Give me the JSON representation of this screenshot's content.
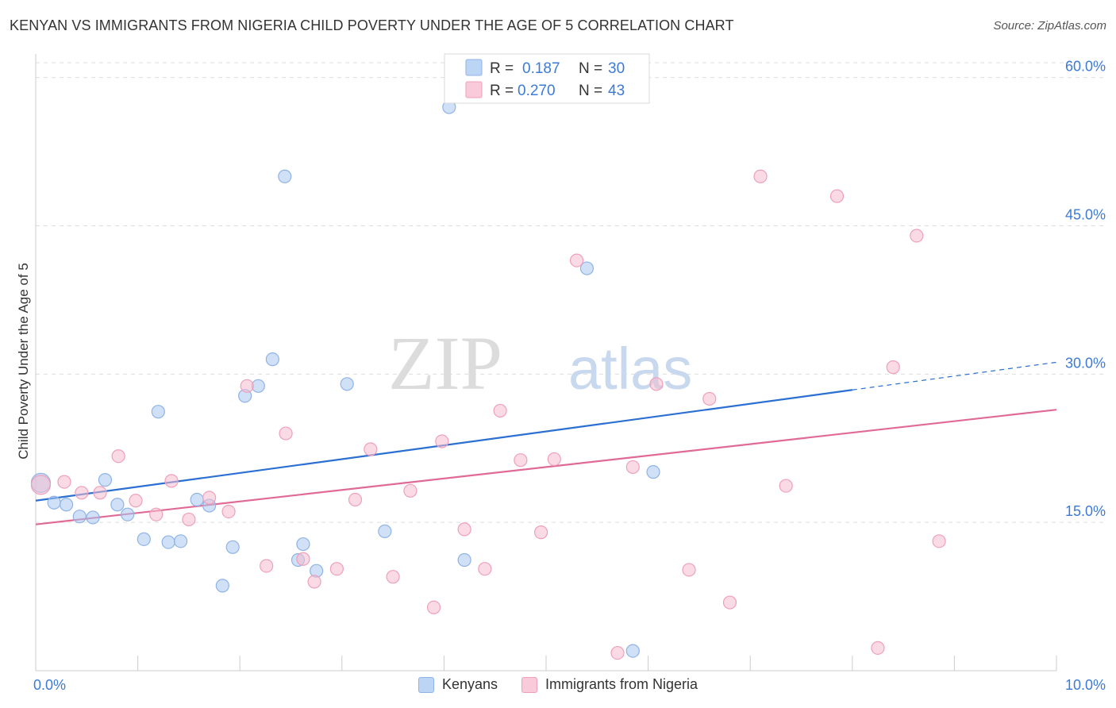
{
  "chart_data": {
    "type": "scatter",
    "title": "KENYAN VS IMMIGRANTS FROM NIGERIA CHILD POVERTY UNDER THE AGE OF 5 CORRELATION CHART",
    "source": "Source: ZipAtlas.com",
    "ylabel": "Child Poverty Under the Age of 5",
    "xlim": [
      0,
      10
    ],
    "ylim": [
      0,
      61.5
    ],
    "x_tick_labels": [
      "0.0%",
      "10.0%"
    ],
    "y_ticks": [
      15,
      30,
      45,
      60
    ],
    "y_tick_labels": [
      "15.0%",
      "30.0%",
      "45.0%",
      "60.0%"
    ],
    "watermark": {
      "zip": "ZIP",
      "atlas": "atlas"
    },
    "legend": [
      {
        "r_label": "R =",
        "r_value": "0.187",
        "n_label": "N =",
        "n_value": "30"
      },
      {
        "r_label": "R =",
        "r_value": "0.270",
        "n_label": "N =",
        "n_value": "43"
      }
    ],
    "series": [
      {
        "name": "Kenyans",
        "color": "#a9c8f0",
        "line_color": "#2a6fd1",
        "trend": {
          "x0": 0,
          "y0": 17.2,
          "x1": 8.0,
          "y1": 28.4,
          "dash_x1": 10.0,
          "dash_y1": 31.2
        },
        "points": [
          [
            0.05,
            19.0
          ],
          [
            0.18,
            17.0
          ],
          [
            0.3,
            16.8
          ],
          [
            0.43,
            15.6
          ],
          [
            0.56,
            15.5
          ],
          [
            0.68,
            19.3
          ],
          [
            0.8,
            16.8
          ],
          [
            0.9,
            15.8
          ],
          [
            1.06,
            13.3
          ],
          [
            1.2,
            26.2
          ],
          [
            1.3,
            13.0
          ],
          [
            1.42,
            13.1
          ],
          [
            1.58,
            17.3
          ],
          [
            1.7,
            16.7
          ],
          [
            1.83,
            8.6
          ],
          [
            1.93,
            12.5
          ],
          [
            2.05,
            27.8
          ],
          [
            2.18,
            28.8
          ],
          [
            2.32,
            31.5
          ],
          [
            2.44,
            50.0
          ],
          [
            2.57,
            11.2
          ],
          [
            2.62,
            12.8
          ],
          [
            2.75,
            10.1
          ],
          [
            3.05,
            29.0
          ],
          [
            3.42,
            14.1
          ],
          [
            4.05,
            57.0
          ],
          [
            4.2,
            11.2
          ],
          [
            5.4,
            40.7
          ],
          [
            5.85,
            2.0
          ],
          [
            6.05,
            20.1
          ]
        ]
      },
      {
        "name": "Immigrants from Nigeria",
        "color": "#f6bdd0",
        "line_color": "#e06a95",
        "trend": {
          "x0": 0,
          "y0": 14.8,
          "x1": 10.0,
          "y1": 26.4
        },
        "points": [
          [
            0.05,
            18.8
          ],
          [
            0.28,
            19.1
          ],
          [
            0.45,
            18.0
          ],
          [
            0.63,
            18.0
          ],
          [
            0.81,
            21.7
          ],
          [
            0.98,
            17.2
          ],
          [
            1.18,
            15.8
          ],
          [
            1.33,
            19.2
          ],
          [
            1.5,
            15.3
          ],
          [
            1.7,
            17.5
          ],
          [
            1.89,
            16.1
          ],
          [
            2.07,
            28.8
          ],
          [
            2.26,
            10.6
          ],
          [
            2.45,
            24.0
          ],
          [
            2.62,
            11.3
          ],
          [
            2.73,
            9.0
          ],
          [
            2.95,
            10.3
          ],
          [
            3.13,
            17.3
          ],
          [
            3.28,
            22.4
          ],
          [
            3.5,
            9.5
          ],
          [
            3.67,
            18.2
          ],
          [
            3.9,
            6.4
          ],
          [
            3.98,
            23.2
          ],
          [
            4.2,
            14.3
          ],
          [
            4.4,
            10.3
          ],
          [
            4.55,
            26.3
          ],
          [
            4.75,
            21.3
          ],
          [
            4.95,
            14.0
          ],
          [
            5.08,
            21.4
          ],
          [
            5.3,
            41.5
          ],
          [
            5.85,
            20.6
          ],
          [
            5.7,
            1.8
          ],
          [
            6.08,
            29.0
          ],
          [
            6.4,
            10.2
          ],
          [
            6.6,
            27.5
          ],
          [
            6.8,
            6.9
          ],
          [
            7.1,
            50.0
          ],
          [
            7.35,
            18.7
          ],
          [
            7.85,
            48.0
          ],
          [
            8.25,
            2.3
          ],
          [
            8.4,
            30.7
          ],
          [
            8.63,
            44.0
          ],
          [
            8.85,
            13.1
          ]
        ]
      }
    ]
  },
  "legend_bottom": [
    "Kenyans",
    "Immigrants from Nigeria"
  ]
}
